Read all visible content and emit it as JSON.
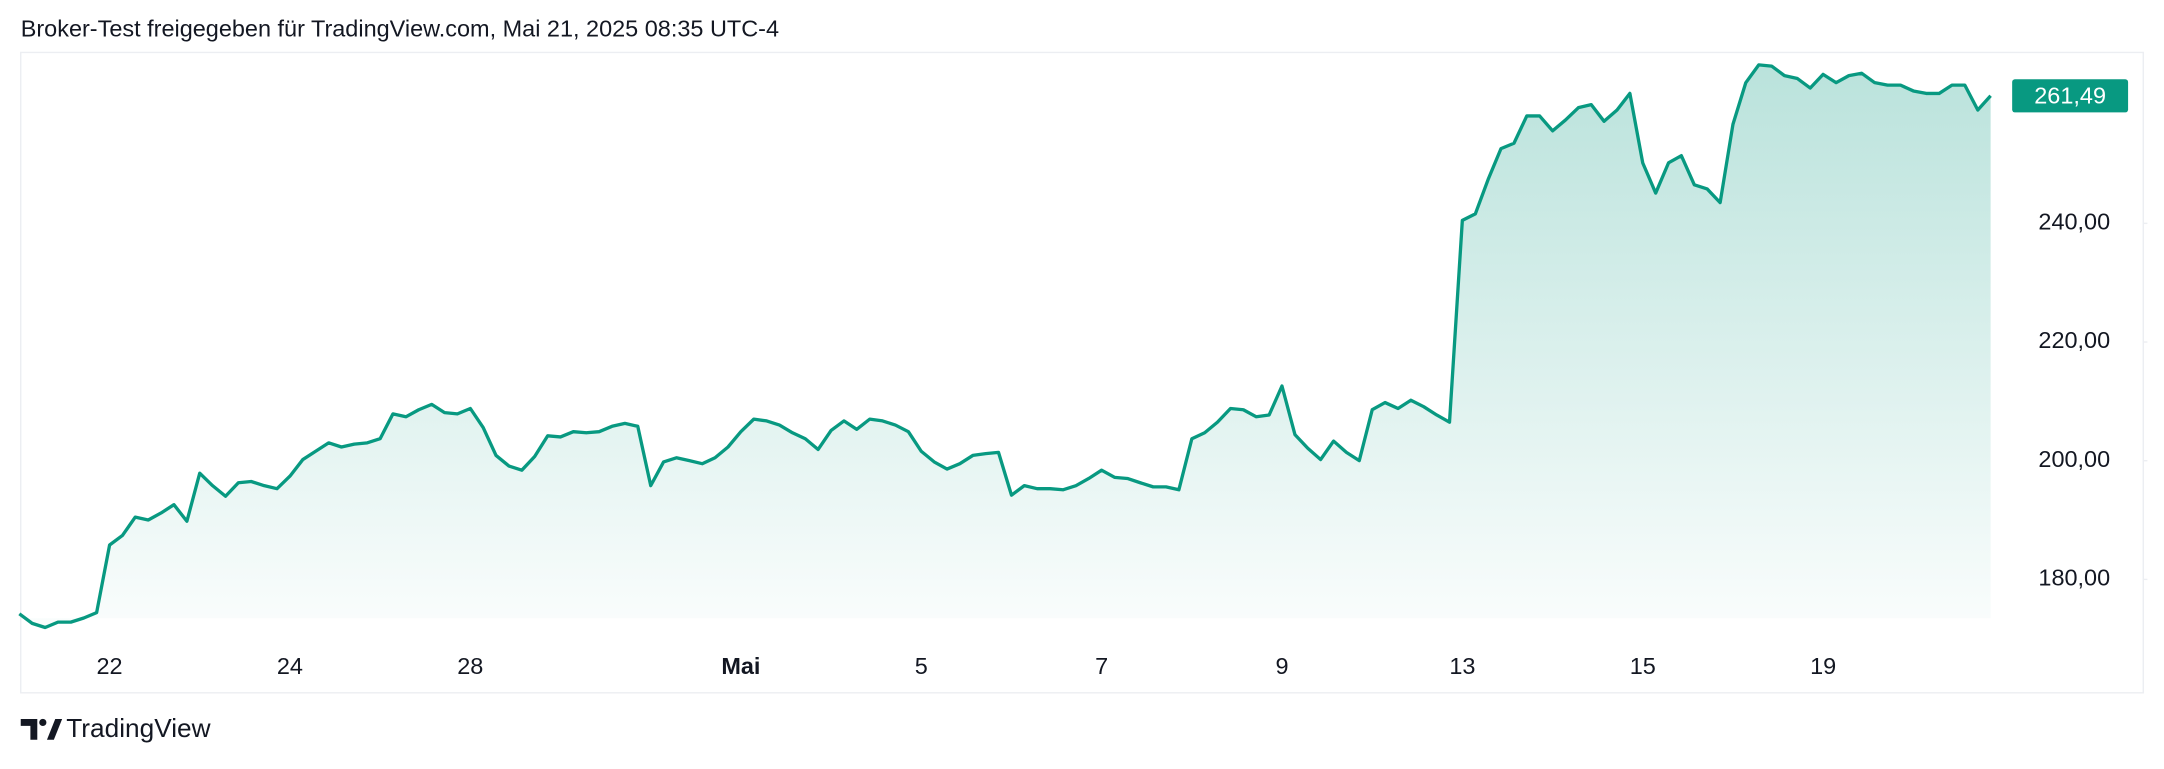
{
  "chart_data": {
    "type": "line",
    "title": "Broker-Test freigegeben für TradingView.com, Mai 21, 2025 08:35 UTC-4",
    "brand": "TradingView",
    "color": "#089981",
    "categories": [
      null,
      null,
      null,
      null,
      null,
      null,
      null,
      "22",
      null,
      null,
      null,
      null,
      null,
      null,
      null,
      null,
      null,
      null,
      null,
      null,
      null,
      "24",
      null,
      null,
      null,
      null,
      null,
      null,
      null,
      null,
      null,
      null,
      null,
      null,
      null,
      "28",
      null,
      null,
      null,
      null,
      null,
      null,
      null,
      null,
      null,
      null,
      null,
      null,
      null,
      null,
      null,
      null,
      null,
      null,
      null,
      null,
      "Mai",
      null,
      null,
      null,
      null,
      null,
      null,
      null,
      null,
      null,
      null,
      null,
      null,
      null,
      "5",
      null,
      null,
      null,
      null,
      null,
      null,
      null,
      null,
      null,
      null,
      null,
      null,
      null,
      "7",
      null,
      null,
      null,
      null,
      null,
      null,
      null,
      null,
      null,
      null,
      null,
      null,
      null,
      "9",
      null,
      null,
      null,
      null,
      null,
      null,
      null,
      null,
      null,
      null,
      null,
      null,
      null,
      "13",
      null,
      null,
      null,
      null,
      null,
      null,
      null,
      null,
      null,
      null,
      null,
      null,
      null,
      "15",
      null,
      null,
      null,
      null,
      null,
      null,
      null,
      null,
      null,
      null,
      null,
      null,
      null,
      "19",
      null,
      null,
      null,
      null,
      null,
      null,
      null,
      null,
      null,
      null,
      null,
      null,
      null
    ],
    "values": [
      174.2,
      172.6,
      171.9,
      172.8,
      172.8,
      173.5,
      174.4,
      185.8,
      187.4,
      190.5,
      190.0,
      191.2,
      192.6,
      189.8,
      197.9,
      195.8,
      194.0,
      196.3,
      196.5,
      195.8,
      195.3,
      197.4,
      200.2,
      201.6,
      203.0,
      202.3,
      202.8,
      203.0,
      203.7,
      207.9,
      207.4,
      208.6,
      209.5,
      208.1,
      207.9,
      208.8,
      205.6,
      200.9,
      199.1,
      198.4,
      200.7,
      204.2,
      204.0,
      204.9,
      204.7,
      204.9,
      205.8,
      206.3,
      205.8,
      195.8,
      199.8,
      200.5,
      200.0,
      199.5,
      200.5,
      202.3,
      204.9,
      207.0,
      206.7,
      206.0,
      204.7,
      203.7,
      201.9,
      205.1,
      206.7,
      205.3,
      207.0,
      206.7,
      206.0,
      204.9,
      201.6,
      199.8,
      198.6,
      199.5,
      200.9,
      201.2,
      201.4,
      194.2,
      195.8,
      195.3,
      195.3,
      195.1,
      195.8,
      197.0,
      198.4,
      197.2,
      197.0,
      196.3,
      195.6,
      195.6,
      195.1,
      203.7,
      204.7,
      206.5,
      208.8,
      208.6,
      207.4,
      207.7,
      212.6,
      204.4,
      202.1,
      200.2,
      203.3,
      201.4,
      200.0,
      208.6,
      209.8,
      208.8,
      210.2,
      209.1,
      207.7,
      206.5,
      240.5,
      241.6,
      247.4,
      252.6,
      253.5,
      258.1,
      258.1,
      255.6,
      257.4,
      259.5,
      260.0,
      257.2,
      259.1,
      261.9,
      250.2,
      245.1,
      250.2,
      251.4,
      246.5,
      245.8,
      243.5,
      256.7,
      263.7,
      266.7,
      266.5,
      264.9,
      264.4,
      262.8,
      265.1,
      263.7,
      264.9,
      265.3,
      263.7,
      263.3,
      263.3,
      262.3,
      261.9,
      261.9,
      263.3,
      263.3,
      259.1,
      261.49
    ],
    "current_price": {
      "value": 261.49,
      "label": "261,49"
    },
    "ylim": [
      168.8,
      268.8
    ],
    "yticks": [
      {
        "value": 180,
        "label": "180,00"
      },
      {
        "value": 200,
        "label": "200,00"
      },
      {
        "value": 220,
        "label": "220,00"
      },
      {
        "value": 240,
        "label": "240,00"
      }
    ],
    "grid": false
  }
}
